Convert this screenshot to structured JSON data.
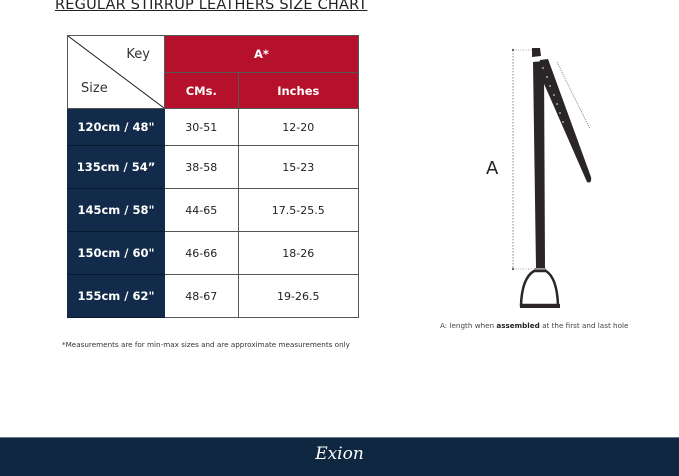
{
  "title": "REGULAR STIRRUP LEATHERS  SIZE CHART",
  "table": {
    "corner_key": "Key",
    "corner_size": "Size",
    "group_header": "A*",
    "columns": [
      "CMs.",
      "Inches"
    ],
    "rows": [
      {
        "size": "120cm / 48\"",
        "cms": "30-51",
        "inches": "12-20"
      },
      {
        "size": "135cm / 54”",
        "cms": "38-58",
        "inches": "15-23"
      },
      {
        "size": "145cm / 58\"",
        "cms": "44-65",
        "inches": "17.5-25.5"
      },
      {
        "size": "150cm / 60\"",
        "cms": "46-66",
        "inches": "18-26"
      },
      {
        "size": "155cm / 62\"",
        "cms": "48-67",
        "inches": "19-26.5"
      }
    ]
  },
  "note": "*Measurements are for min-max sizes and are approximate measurements only",
  "diagram": {
    "dimension_label": "A",
    "caption_prefix": "A: length when ",
    "caption_bold": "assembled",
    "caption_suffix": " at the first and last hole"
  },
  "footer": {
    "logo": "Exion"
  },
  "colors": {
    "header_red": "#b5112c",
    "size_navy": "#132b4a",
    "footer_navy": "#0f2740"
  }
}
